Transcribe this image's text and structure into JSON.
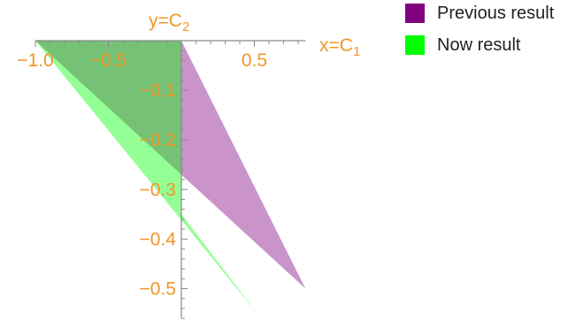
{
  "chart_data": {
    "type": "area",
    "xlabel": {
      "var": "x=C",
      "sub": "1"
    },
    "ylabel": {
      "var": "y=C",
      "sub": "2"
    },
    "x_ticks": [
      -1.0,
      -0.5,
      0.5
    ],
    "x_tick_labels": [
      "−1.0",
      "−0.5",
      "0.5"
    ],
    "y_ticks": [
      -0.1,
      -0.2,
      -0.3,
      -0.4,
      -0.5
    ],
    "y_tick_labels": [
      "−0.1",
      "−0.2",
      "−0.3",
      "−0.4",
      "−0.5"
    ],
    "xlim": [
      -1.0,
      0.85
    ],
    "ylim": [
      -0.55,
      0
    ],
    "series": [
      {
        "name": "Previous result",
        "color": "#800080",
        "polygon": [
          [
            -1.0,
            0
          ],
          [
            0,
            0
          ],
          [
            0.85,
            -0.5
          ]
        ]
      },
      {
        "name": "Now result",
        "color": "#00ff00",
        "polygon": [
          [
            -1.0,
            0
          ],
          [
            0,
            0
          ],
          [
            0,
            -0.35
          ],
          [
            0.52,
            -0.55
          ]
        ]
      }
    ],
    "legend_position": "top-right",
    "grid": false
  },
  "legend": {
    "items": [
      {
        "label": "Previous result",
        "color": "#800080"
      },
      {
        "label": "Now result",
        "color": "#00ff00"
      }
    ]
  }
}
